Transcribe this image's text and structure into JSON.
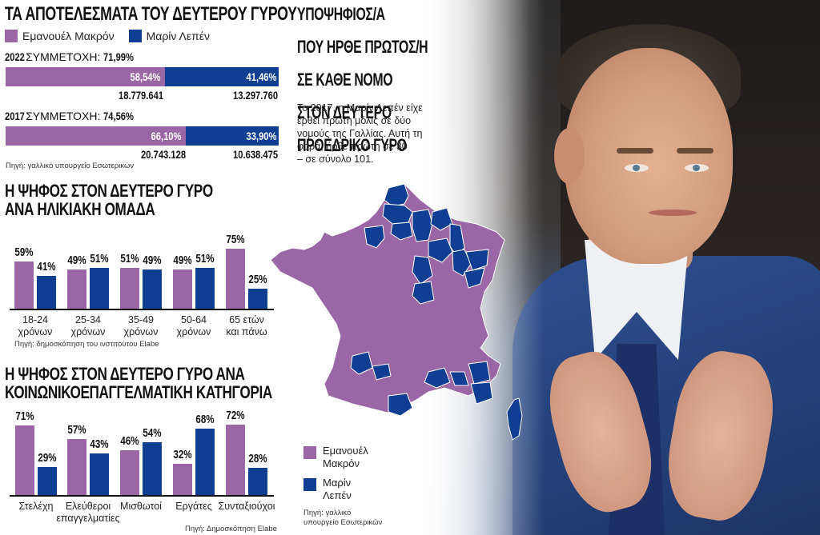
{
  "colors": {
    "macron": "#9b66a6",
    "lepen": "#0f3e93"
  },
  "results": {
    "title": "ΤΑ ΑΠΟΤΕΛΕΣΜΑΤΑ ΤΟΥ ΔΕΥΤΕΡΟΥ ΓΥΡΟΥ",
    "legend": {
      "macron": "Εμανουέλ Μακρόν",
      "lepen": "Μαρίν Λεπέν"
    },
    "y2022": {
      "year": "2022",
      "turnout_label": "ΣΥΜΜΕΤΟΧΗ:",
      "turnout": "71,99%",
      "macron_pct": "58,54%",
      "lepen_pct": "41,46%",
      "macron_votes": "18.779.641",
      "lepen_votes": "13.297.760"
    },
    "y2017": {
      "year": "2017",
      "turnout_label": "ΣΥΜΜΕΤΟΧΗ:",
      "turnout": "74,56%",
      "macron_pct": "66,10%",
      "lepen_pct": "33,90%",
      "macron_votes": "20.743.128",
      "lepen_votes": "10.638.475"
    },
    "source": "Πηγή: γαλλικό υπουργείο Εσωτερικών"
  },
  "age": {
    "title_line1": "Η ΨΗΦΟΣ ΣΤΟΝ ΔΕΥΤΕΡΟ ΓΥΡΟ",
    "title_line2": "ΑΝΑ ΗΛΙΚΙΑΚΗ ΟΜΑΔΑ",
    "groups": [
      {
        "l1": "18-24",
        "l2": "χρόνων",
        "m": "59%",
        "l": "41%"
      },
      {
        "l1": "25-34",
        "l2": "χρόνων",
        "m": "49%",
        "l": "51%"
      },
      {
        "l1": "35-49",
        "l2": "χρόνων",
        "m": "51%",
        "l": "49%"
      },
      {
        "l1": "50-64",
        "l2": "χρόνων",
        "m": "49%",
        "l": "51%"
      },
      {
        "l1": "65 ετών",
        "l2": "και πάνω",
        "m": "75%",
        "l": "25%"
      }
    ],
    "source": "Πηγή: δημοσκόπηση του ινστιτούτου Elabe"
  },
  "social": {
    "title_line1": "Η ΨΗΦΟΣ ΣΤΟΝ ΔΕΥΤΕΡΟ ΓΥΡΟ ΑΝΑ",
    "title_line2": "ΚΟΙΝΩΝΙΚΟΕΠΑΓΓΕΛΜΑΤΙΚΗ ΚΑΤΗΓΟΡΙΑ",
    "groups": [
      {
        "l1": "Στελέχη",
        "l2": "",
        "m": "71%",
        "l": "29%"
      },
      {
        "l1": "Ελεύθεροι",
        "l2": "επαγγελματίες",
        "m": "57%",
        "l": "43%"
      },
      {
        "l1": "Μισθωτοί",
        "l2": "",
        "m": "46%",
        "l": "54%"
      },
      {
        "l1": "Εργάτες",
        "l2": "",
        "m": "32%",
        "l": "68%"
      },
      {
        "l1": "Συνταξιούχοι",
        "l2": "",
        "m": "72%",
        "l": "28%"
      }
    ],
    "source": "Πηγή: Δημοσκόπηση Elabe"
  },
  "map": {
    "title_lines": [
      "ΥΠΟΨΗΦΙΟΣ/Α",
      "ΠΟΥ ΗΡΘΕ ΠΡΩΤΟΣ/Η",
      "ΣΕ ΚΑΘΕ ΝΟΜΟ",
      "ΣΤΟΝ ΔΕΥΤΕΡΟ",
      "ΠΡΟΕΔΡΙΚΟ ΓΥΡΟ"
    ],
    "text_lines": [
      "Το 2017, η Μαρίν Λεπέν είχε",
      "έρθει πρώτη μόλις σε δύο",
      "νομούς της Γαλλίας. Αυτή τη",
      "φορά, ήρθε πρώτη σε 30",
      "– σε σύνολο 101."
    ],
    "legend": {
      "macron_l1": "Εμανουέλ",
      "macron_l2": "Μακρόν",
      "lepen_l1": "Μαρίν",
      "lepen_l2": "Λεπέν"
    },
    "source_l1": "Πηγή: γαλλικό",
    "source_l2": "υπουργείο Εσωτερικών"
  },
  "chart_data": [
    {
      "type": "bar",
      "title": "ΤΑ ΑΠΟΤΕΛΕΣΜΑΤΑ ΤΟΥ ΔΕΥΤΕΡΟΥ ΓΥΡΟΥ",
      "orientation": "horizontal-stacked",
      "categories": [
        "2022",
        "2017"
      ],
      "series": [
        {
          "name": "Εμανουέλ Μακρόν",
          "values": [
            58.54,
            66.1
          ],
          "votes": [
            18779641,
            20743128
          ]
        },
        {
          "name": "Μαρίν Λεπέν",
          "values": [
            41.46,
            33.9
          ],
          "votes": [
            13297760,
            10638475
          ]
        }
      ],
      "turnout": {
        "2022": 71.99,
        "2017": 74.56
      }
    },
    {
      "type": "bar",
      "title": "Η ΨΗΦΟΣ ΣΤΟΝ ΔΕΥΤΕΡΟ ΓΥΡΟ ΑΝΑ ΗΛΙΚΙΑΚΗ ΟΜΑΔΑ",
      "categories": [
        "18-24 χρόνων",
        "25-34 χρόνων",
        "35-49 χρόνων",
        "50-64 χρόνων",
        "65 ετών και πάνω"
      ],
      "series": [
        {
          "name": "Εμανουέλ Μακρόν",
          "values": [
            59,
            49,
            51,
            49,
            75
          ]
        },
        {
          "name": "Μαρίν Λεπέν",
          "values": [
            41,
            51,
            49,
            51,
            25
          ]
        }
      ],
      "ylabel": "%",
      "ylim": [
        0,
        100
      ]
    },
    {
      "type": "bar",
      "title": "Η ΨΗΦΟΣ ΣΤΟΝ ΔΕΥΤΕΡΟ ΓΥΡΟ ΑΝΑ ΚΟΙΝΩΝΙΚΟΕΠΑΓΓΕΛΜΑΤΙΚΗ ΚΑΤΗΓΟΡΙΑ",
      "categories": [
        "Στελέχη",
        "Ελεύθεροι επαγγελματίες",
        "Μισθωτοί",
        "Εργάτες",
        "Συνταξιούχοι"
      ],
      "series": [
        {
          "name": "Εμανουέλ Μακρόν",
          "values": [
            71,
            57,
            46,
            32,
            72
          ]
        },
        {
          "name": "Μαρίν Λεπέν",
          "values": [
            29,
            43,
            54,
            68,
            28
          ]
        }
      ],
      "ylabel": "%",
      "ylim": [
        0,
        100
      ]
    }
  ]
}
